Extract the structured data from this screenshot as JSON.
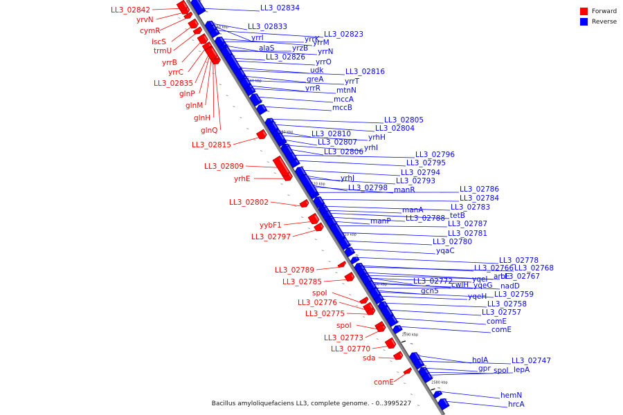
{
  "caption": "Bacillus amyloliquefaciens LL3, complete genome. - 0..3995227",
  "legend": [
    {
      "label": "Forward",
      "color": "#ff0000"
    },
    {
      "label": "Reverse",
      "color": "#0000ff"
    }
  ],
  "colors": {
    "forward": "#ff0000",
    "reverse": "#0000ff",
    "backbone": "#888888"
  },
  "ticks": [
    "2650 kbp",
    "2640 kbp",
    "2630 kbp",
    "2620 kbp",
    "2610 kbp",
    "2600 kbp",
    "2590 kbp",
    "2580 kbp"
  ],
  "forward_genes": [
    "LL3_02842",
    "yrvN",
    "cymR",
    "iscS",
    "trmU",
    "yrrB",
    "yrrC",
    "LL3_02835",
    "glnP",
    "glnM",
    "glnH",
    "glnQ",
    "LL3_02815",
    "LL3_02809",
    "yrhE",
    "LL3_02802",
    "yybF1",
    "LL3_02797",
    "LL3_02789",
    "LL3_02785",
    "spoI",
    "LL3_02776",
    "LL3_02775",
    "spoI",
    "LL3_02773",
    "LL3_02770",
    "sda",
    "comE"
  ],
  "reverse_genes": [
    "LL3_02834",
    "LL3_02833",
    "yrrI",
    "alaS",
    "yrrK",
    "LL3_02823",
    "yrzB",
    "yrrM",
    "LL3_02826",
    "yrrN",
    "yrrO",
    "udk",
    "greA",
    "yrrR",
    "LL3_02816",
    "yrrT",
    "mtnN",
    "mccA",
    "mccB",
    "LL3_02805",
    "LL3_02804",
    "LL3_02810",
    "LL3_02807",
    "yrhH",
    "yrhI",
    "LL3_02806",
    "LL3_02796",
    "LL3_02795",
    "LL3_02794",
    "LL3_02793",
    "yrhJ",
    "manR",
    "LL3_02798",
    "LL3_02786",
    "LL3_02784",
    "LL3_02783",
    "manA",
    "tetB",
    "LL3_02788",
    "manP",
    "LL3_02787",
    "LL3_02781",
    "LL3_02780",
    "yqaC",
    "LL3_02778",
    "LL3_02766",
    "LL3_02768",
    "aroE",
    "LL3_02767",
    "yqeI",
    "cwlH",
    "LL3_02772",
    "yqeG",
    "nadD",
    "yqeH",
    "LL3_02759",
    "gcn5",
    "LL3_02758",
    "LL3_02757",
    "comE",
    "comE",
    "holA",
    "LL3_02747",
    "gpr",
    "spoI",
    "lepA",
    "hemN",
    "hrcA"
  ]
}
